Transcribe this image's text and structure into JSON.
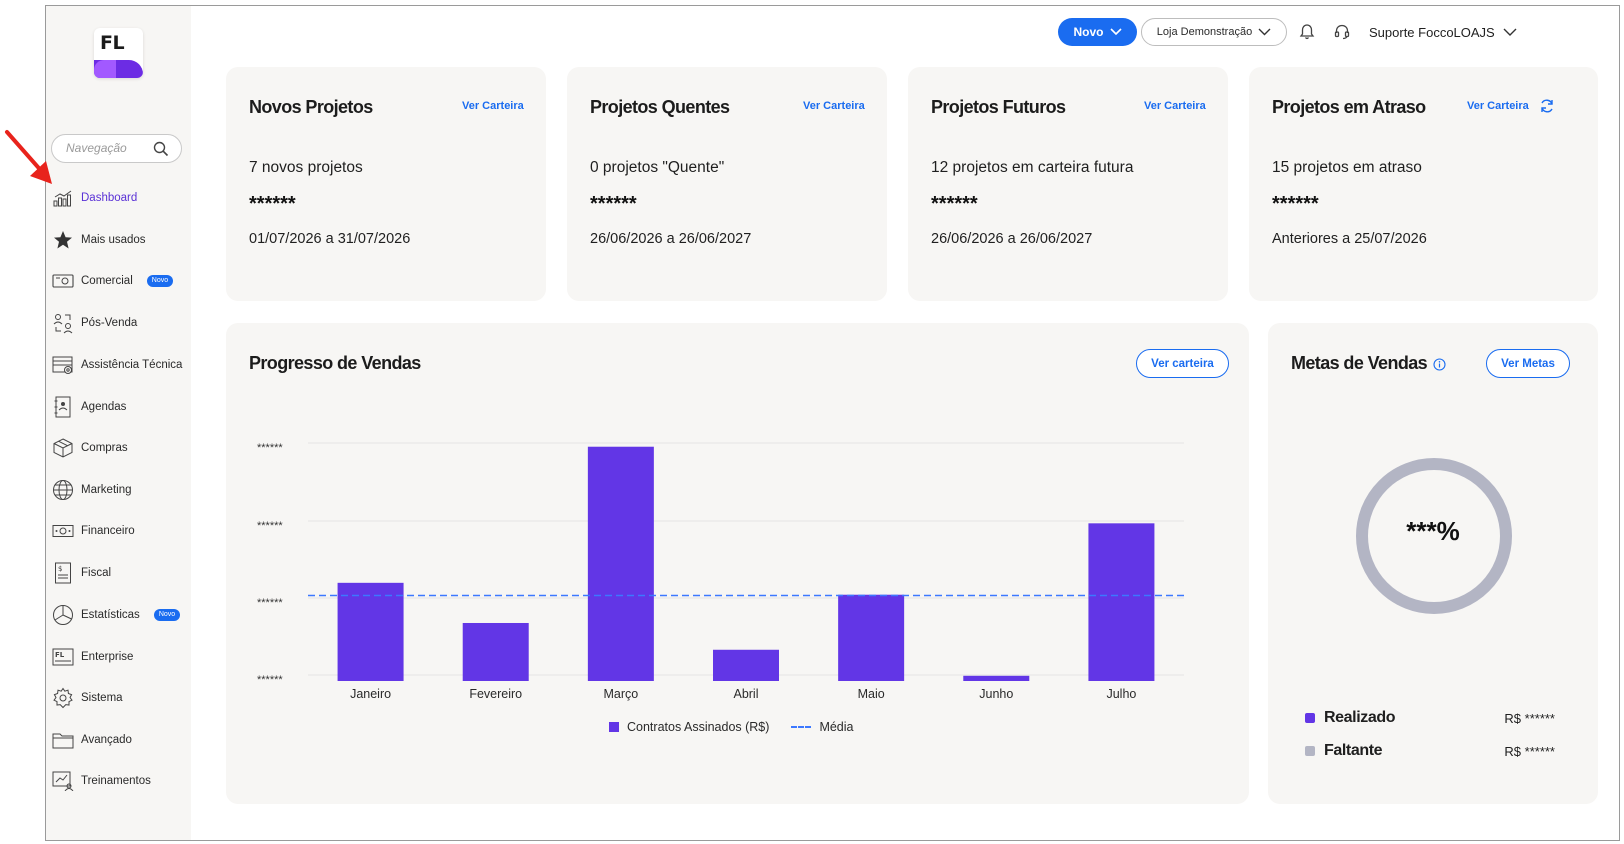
{
  "logo": {
    "text": "FL"
  },
  "sidebar": {
    "search_placeholder": "Navegação",
    "items": [
      {
        "label": "Dashboard",
        "icon": "bar-chart-icon",
        "active": true
      },
      {
        "label": "Mais usados",
        "icon": "star-icon"
      },
      {
        "label": "Comercial",
        "icon": "wallet-icon",
        "badge": "Novo"
      },
      {
        "label": "Pós-Venda",
        "icon": "people-exchange-icon"
      },
      {
        "label": "Assistência Técnica",
        "icon": "toolbox-icon"
      },
      {
        "label": "Agendas",
        "icon": "agenda-icon"
      },
      {
        "label": "Compras",
        "icon": "box-icon"
      },
      {
        "label": "Marketing",
        "icon": "globe-icon"
      },
      {
        "label": "Financeiro",
        "icon": "money-icon"
      },
      {
        "label": "Fiscal",
        "icon": "document-dollar-icon"
      },
      {
        "label": "Estatísticas",
        "icon": "pie-chart-icon",
        "badge": "Novo"
      },
      {
        "label": "Enterprise",
        "icon": "enterprise-icon"
      },
      {
        "label": "Sistema",
        "icon": "gear-icon"
      },
      {
        "label": "Avançado",
        "icon": "folder-icon"
      },
      {
        "label": "Treinamentos",
        "icon": "training-icon"
      }
    ]
  },
  "topbar": {
    "novo_label": "Novo",
    "store_label": "Loja Demonstração",
    "user_label": "Suporte FoccoLOAJS"
  },
  "cards": [
    {
      "title": "Novos Projetos",
      "link": "Ver Carteira",
      "line1": "7 novos projetos",
      "stars": "******",
      "line2": "01/07/2026 a 31/07/2026"
    },
    {
      "title": "Projetos Quentes",
      "link": "Ver Carteira",
      "line1": "0 projetos \"Quente\"",
      "stars": "******",
      "line2": "26/06/2026 a 26/06/2027"
    },
    {
      "title": "Projetos Futuros",
      "link": "Ver Carteira",
      "line1": "12 projetos em carteira futura",
      "stars": "******",
      "line2": "26/06/2026 a 26/06/2027"
    },
    {
      "title": "Projetos em Atraso",
      "link": "Ver Carteira",
      "line1": "15 projetos em atraso",
      "stars": "******",
      "line2": "Anteriores a 25/07/2026"
    }
  ],
  "sales_progress": {
    "title": "Progresso de Vendas",
    "button": "Ver carteira"
  },
  "chart_data": {
    "type": "bar",
    "title": "Progresso de Vendas",
    "categories": [
      "Janeiro",
      "Fevereiro",
      "Março",
      "Abril",
      "Maio",
      "Junho",
      "Julho"
    ],
    "series": [
      {
        "name": "Contratos Assinados (R$)",
        "values": [
          1.32,
          0.78,
          3.15,
          0.42,
          1.16,
          0.07,
          2.12
        ],
        "color": "#6236e6"
      }
    ],
    "reference_lines": [
      {
        "name": "Média",
        "value": 1.15,
        "style": "dashed",
        "color": "#3c78ff"
      }
    ],
    "y_tick_labels": [
      "******",
      "******",
      "******",
      "******"
    ],
    "ylim": [
      0,
      3.2
    ],
    "legend_position": "bottom",
    "grid": true
  },
  "sales_goals": {
    "title": "Metas de Vendas",
    "button": "Ver Metas",
    "percent": "***%",
    "achieved_fraction": 0,
    "rows": [
      {
        "label": "Realizado",
        "value": "R$ ******",
        "color": "#6236e6"
      },
      {
        "label": "Faltante",
        "value": "R$ ******",
        "color": "#b3b5c4"
      }
    ]
  }
}
